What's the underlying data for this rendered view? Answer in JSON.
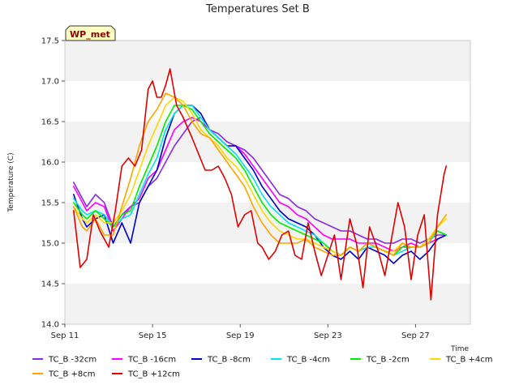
{
  "chart_data": {
    "type": "line",
    "title": "Temperatures Set B",
    "xlabel": "Time",
    "ylabel": "Temperature (C)",
    "badge": "WP_met",
    "ylim": [
      14.0,
      17.5
    ],
    "xlim": [
      11,
      29.5
    ],
    "yticks": [
      14.0,
      14.5,
      15.0,
      15.5,
      16.0,
      16.5,
      17.0,
      17.5
    ],
    "ytick_labels": [
      "14.0",
      "14.5",
      "15.0",
      "15.5",
      "16.0",
      "16.5",
      "17.0",
      "17.5"
    ],
    "xticks": [
      11,
      15,
      19,
      23,
      27
    ],
    "xtick_labels": [
      "Sep 11",
      "Sep 15",
      "Sep 19",
      "Sep 23",
      "Sep 27"
    ],
    "grid": "alternating horizontal bands",
    "legend_position": "bottom",
    "series": [
      {
        "name": "TC_B -32cm",
        "color": "#8a2be2",
        "x": [
          11.4,
          11.8,
          12.0,
          12.4,
          12.8,
          13.2,
          13.6,
          14.0,
          14.4,
          14.8,
          15.2,
          15.6,
          16.0,
          16.4,
          16.8,
          17.2,
          17.6,
          18.0,
          18.4,
          18.8,
          19.2,
          19.6,
          20.0,
          20.4,
          20.8,
          21.2,
          21.6,
          22.0,
          22.4,
          22.8,
          23.2,
          23.6,
          24.0,
          24.4,
          24.8,
          25.2,
          25.6,
          26.0,
          26.4,
          26.8,
          27.2,
          27.6,
          28.0,
          28.4
        ],
        "values": [
          15.75,
          15.55,
          15.45,
          15.6,
          15.5,
          15.2,
          15.35,
          15.45,
          15.5,
          15.7,
          15.8,
          16.0,
          16.2,
          16.35,
          16.5,
          16.55,
          16.4,
          16.35,
          16.25,
          16.2,
          16.15,
          16.05,
          15.9,
          15.75,
          15.6,
          15.55,
          15.45,
          15.4,
          15.3,
          15.25,
          15.2,
          15.15,
          15.15,
          15.1,
          15.05,
          15.05,
          15.0,
          15.0,
          15.05,
          15.05,
          15.0,
          15.05,
          15.1,
          15.1
        ]
      },
      {
        "name": "TC_B -16cm",
        "color": "#ff00ff",
        "x": [
          11.4,
          11.8,
          12.0,
          12.4,
          12.8,
          13.2,
          13.6,
          14.0,
          14.4,
          14.8,
          15.2,
          15.6,
          16.0,
          16.4,
          16.8,
          17.2,
          17.6,
          18.0,
          18.4,
          18.8,
          19.2,
          19.6,
          20.0,
          20.4,
          20.8,
          21.2,
          21.6,
          22.0,
          22.4,
          22.8,
          23.2,
          23.6,
          24.0,
          24.4,
          24.8,
          25.2,
          25.6,
          26.0,
          26.4,
          26.8,
          27.2,
          27.6,
          28.0,
          28.4
        ],
        "values": [
          15.7,
          15.5,
          15.4,
          15.5,
          15.45,
          15.15,
          15.3,
          15.45,
          15.55,
          15.8,
          15.9,
          16.15,
          16.4,
          16.5,
          16.55,
          16.5,
          16.4,
          16.3,
          16.2,
          16.2,
          16.1,
          15.95,
          15.8,
          15.65,
          15.5,
          15.45,
          15.35,
          15.3,
          15.2,
          15.1,
          15.05,
          15.05,
          15.05,
          15.0,
          15.0,
          15.0,
          14.95,
          14.9,
          14.95,
          15.0,
          14.95,
          15.0,
          15.05,
          15.1
        ]
      },
      {
        "name": "TC_B -8cm",
        "color": "#0000cd",
        "x": [
          11.4,
          11.8,
          12.0,
          12.4,
          12.8,
          13.2,
          13.6,
          14.0,
          14.4,
          14.8,
          15.2,
          15.6,
          16.0,
          16.4,
          16.8,
          17.2,
          17.6,
          18.0,
          18.4,
          18.8,
          19.2,
          19.6,
          20.0,
          20.4,
          20.8,
          21.2,
          21.6,
          22.0,
          22.4,
          22.8,
          23.2,
          23.6,
          24.0,
          24.4,
          24.8,
          25.2,
          25.6,
          26.0,
          26.4,
          26.8,
          27.2,
          27.6,
          28.0,
          28.4
        ],
        "values": [
          15.6,
          15.3,
          15.2,
          15.3,
          15.35,
          15.0,
          15.25,
          15.0,
          15.5,
          15.7,
          15.9,
          16.3,
          16.6,
          16.7,
          16.7,
          16.6,
          16.4,
          16.3,
          16.2,
          16.2,
          16.05,
          15.9,
          15.7,
          15.55,
          15.4,
          15.3,
          15.25,
          15.2,
          15.1,
          14.95,
          14.85,
          14.8,
          14.9,
          14.8,
          14.95,
          14.9,
          14.85,
          14.75,
          14.85,
          14.9,
          14.8,
          14.9,
          15.05,
          15.1
        ]
      },
      {
        "name": "TC_B -4cm",
        "color": "#00e5ee",
        "x": [
          11.4,
          11.8,
          12.0,
          12.4,
          12.8,
          13.2,
          13.6,
          14.0,
          14.4,
          14.8,
          15.2,
          15.6,
          16.0,
          16.4,
          16.8,
          17.2,
          17.6,
          18.0,
          18.4,
          18.8,
          19.2,
          19.6,
          20.0,
          20.4,
          20.8,
          21.2,
          21.6,
          22.0,
          22.4,
          22.8,
          23.2,
          23.6,
          24.0,
          24.4,
          24.8,
          25.2,
          25.6,
          26.0,
          26.4,
          26.8,
          27.2,
          27.6,
          28.0,
          28.4
        ],
        "values": [
          15.55,
          15.4,
          15.35,
          15.4,
          15.35,
          15.2,
          15.3,
          15.35,
          15.6,
          15.85,
          16.05,
          16.4,
          16.6,
          16.7,
          16.7,
          16.55,
          16.4,
          16.3,
          16.2,
          16.1,
          15.95,
          15.8,
          15.6,
          15.45,
          15.35,
          15.25,
          15.2,
          15.15,
          15.1,
          15.0,
          14.9,
          14.85,
          14.95,
          14.9,
          14.95,
          14.95,
          14.9,
          14.85,
          14.9,
          14.95,
          14.95,
          15.0,
          15.15,
          15.1
        ]
      },
      {
        "name": "TC_B -2cm",
        "color": "#00ee00",
        "x": [
          11.4,
          11.8,
          12.0,
          12.4,
          12.8,
          13.2,
          13.6,
          14.0,
          14.4,
          14.8,
          15.2,
          15.6,
          16.0,
          16.4,
          16.8,
          17.2,
          17.6,
          18.0,
          18.4,
          18.8,
          19.2,
          19.6,
          20.0,
          20.4,
          20.8,
          21.2,
          21.6,
          22.0,
          22.4,
          22.8,
          23.2,
          23.6,
          24.0,
          24.4,
          24.8,
          25.2,
          25.6,
          26.0,
          26.4,
          26.8,
          27.2,
          27.6,
          28.0,
          28.4
        ],
        "values": [
          15.5,
          15.35,
          15.3,
          15.4,
          15.3,
          15.2,
          15.35,
          15.4,
          15.7,
          15.95,
          16.2,
          16.5,
          16.7,
          16.7,
          16.65,
          16.5,
          16.35,
          16.25,
          16.15,
          16.05,
          15.9,
          15.7,
          15.5,
          15.35,
          15.25,
          15.2,
          15.15,
          15.1,
          15.05,
          15.0,
          14.9,
          14.85,
          14.95,
          14.9,
          15.0,
          14.95,
          14.9,
          14.85,
          14.95,
          14.95,
          14.95,
          15.05,
          15.15,
          15.1
        ]
      },
      {
        "name": "TC_B +4cm",
        "color": "#ffd700",
        "x": [
          11.4,
          11.8,
          12.0,
          12.4,
          12.8,
          13.2,
          13.6,
          14.0,
          14.4,
          14.8,
          15.2,
          15.6,
          16.0,
          16.4,
          16.8,
          17.2,
          17.6,
          18.0,
          18.4,
          18.8,
          19.2,
          19.6,
          20.0,
          20.4,
          20.8,
          21.2,
          21.6,
          22.0,
          22.4,
          22.8,
          23.2,
          23.6,
          24.0,
          24.4,
          24.8,
          25.2,
          25.6,
          26.0,
          26.4,
          26.8,
          27.2,
          27.6,
          28.0,
          28.4
        ],
        "values": [
          15.45,
          15.3,
          15.25,
          15.35,
          15.25,
          15.25,
          15.4,
          15.6,
          15.9,
          16.2,
          16.45,
          16.7,
          16.8,
          16.75,
          16.6,
          16.4,
          16.3,
          16.2,
          16.05,
          15.95,
          15.8,
          15.6,
          15.4,
          15.25,
          15.15,
          15.1,
          15.05,
          15.05,
          15.0,
          14.95,
          14.9,
          14.85,
          14.95,
          14.9,
          15.0,
          14.95,
          14.9,
          14.9,
          15.0,
          14.95,
          14.95,
          15.05,
          15.2,
          15.3
        ]
      },
      {
        "name": "TC_B +8cm",
        "color": "#ffa500",
        "x": [
          11.4,
          11.8,
          12.0,
          12.4,
          12.8,
          13.2,
          13.6,
          14.0,
          14.4,
          14.8,
          15.2,
          15.6,
          16.0,
          16.4,
          16.8,
          17.2,
          17.6,
          18.0,
          18.4,
          18.8,
          19.2,
          19.6,
          20.0,
          20.4,
          20.8,
          21.2,
          21.6,
          22.0,
          22.4,
          22.8,
          23.2,
          23.6,
          24.0,
          24.4,
          24.8,
          25.2,
          25.6,
          26.0,
          26.4,
          26.8,
          27.2,
          27.6,
          28.0,
          28.4
        ],
        "values": [
          15.45,
          15.2,
          15.15,
          15.3,
          15.1,
          15.1,
          15.45,
          15.8,
          16.2,
          16.5,
          16.65,
          16.85,
          16.8,
          16.7,
          16.5,
          16.35,
          16.3,
          16.15,
          16.0,
          15.85,
          15.7,
          15.45,
          15.25,
          15.1,
          15.0,
          15.0,
          15.0,
          15.05,
          14.95,
          14.9,
          14.85,
          14.85,
          14.95,
          14.9,
          15.0,
          14.95,
          14.9,
          14.85,
          15.0,
          14.95,
          14.95,
          15.0,
          15.2,
          15.35
        ]
      },
      {
        "name": "TC_B +12cm",
        "color": "#e00000",
        "x": [
          11.4,
          11.7,
          12.0,
          12.3,
          12.6,
          13.0,
          13.3,
          13.6,
          13.9,
          14.2,
          14.5,
          14.8,
          15.0,
          15.2,
          15.4,
          15.6,
          15.8,
          16.1,
          16.4,
          16.8,
          17.1,
          17.4,
          17.7,
          18.0,
          18.3,
          18.6,
          18.9,
          19.2,
          19.5,
          19.8,
          20.0,
          20.3,
          20.6,
          20.9,
          21.2,
          21.5,
          21.8,
          22.1,
          22.4,
          22.7,
          23.0,
          23.3,
          23.6,
          24.0,
          24.3,
          24.6,
          24.9,
          25.3,
          25.6,
          25.9,
          26.2,
          26.5,
          26.8,
          27.1,
          27.4,
          27.7,
          28.0,
          28.3,
          28.4
        ],
        "values": [
          15.4,
          14.7,
          14.8,
          15.35,
          15.15,
          14.95,
          15.4,
          15.95,
          16.05,
          15.95,
          16.15,
          16.9,
          17.0,
          16.8,
          16.8,
          16.95,
          17.15,
          16.7,
          16.55,
          16.3,
          16.1,
          15.9,
          15.9,
          15.95,
          15.8,
          15.6,
          15.2,
          15.35,
          15.4,
          15.0,
          14.95,
          14.8,
          14.9,
          15.1,
          15.15,
          14.85,
          14.8,
          15.25,
          14.9,
          14.6,
          14.85,
          15.1,
          14.55,
          15.3,
          15.0,
          14.45,
          15.2,
          14.9,
          14.6,
          15.05,
          15.5,
          15.2,
          14.55,
          15.1,
          15.35,
          14.3,
          15.35,
          15.85,
          15.95
        ]
      }
    ]
  }
}
